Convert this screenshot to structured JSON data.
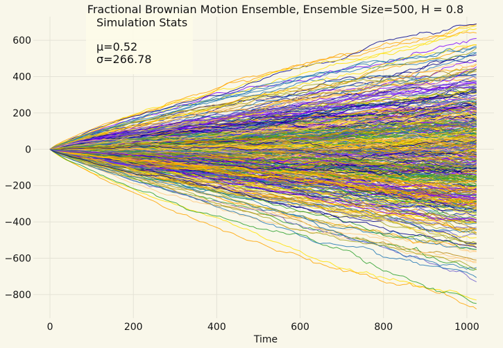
{
  "chart_data": {
    "type": "line",
    "title": "Fractional Brownian Motion Ensemble, Ensemble Size=500, H = 0.8",
    "xlabel": "Time",
    "ylabel": "",
    "xlim": [
      -40,
      1065
    ],
    "ylim": [
      -930,
      730
    ],
    "x_ticks": [
      0,
      200,
      400,
      600,
      800,
      1000
    ],
    "y_ticks": [
      600,
      400,
      200,
      0,
      -200,
      -400,
      -600,
      -800
    ],
    "x_tick_labels": [
      "0",
      "200",
      "400",
      "600",
      "800",
      "1000"
    ],
    "y_tick_labels": [
      "600",
      "400",
      "200",
      "0",
      "−200",
      "−400",
      "−600",
      "−800"
    ],
    "grid": true,
    "ensemble_size": 500,
    "hurst": 0.8,
    "n_steps": 1024,
    "series_palette": [
      "#ffe100",
      "#ffa500",
      "#7b00ff",
      "#1f77b4",
      "#00008b",
      "#a5a520",
      "#ffc87c",
      "#b8860b",
      "#2ca02c",
      "#6a5acd"
    ],
    "final_values_extremes": [
      680,
      640,
      610,
      560,
      520,
      -520,
      -560,
      -610,
      -660,
      -730,
      -830,
      -880
    ],
    "stats_box": {
      "heading": "Simulation Stats",
      "mean_text": "μ=0.52",
      "std_text": "σ=266.78",
      "location": "upper-left"
    }
  }
}
